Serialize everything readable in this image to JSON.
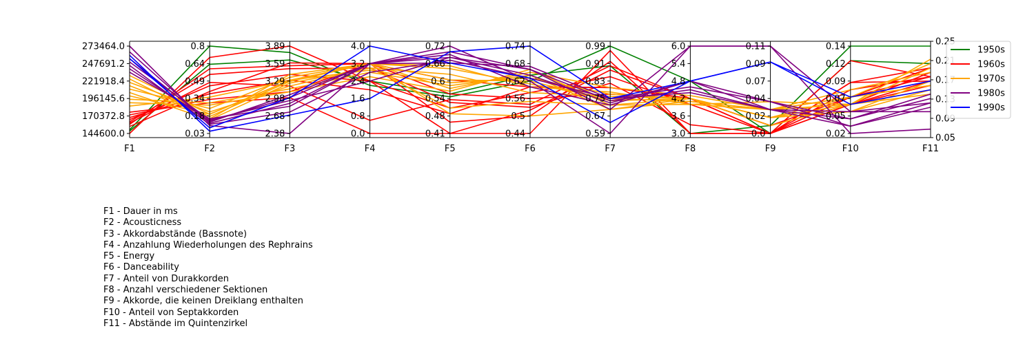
{
  "chart_data": {
    "type": "parallel-coordinates",
    "axes": [
      {
        "name": "F1",
        "range": [
          144600.0,
          273464.0
        ],
        "ticks": [
          "144600.0",
          "170372.8",
          "196145.6",
          "221918.4",
          "247691.2",
          "273464.0"
        ]
      },
      {
        "name": "F2",
        "range": [
          0.03,
          0.8
        ],
        "ticks": [
          "0.03",
          "0.18",
          "0.34",
          "0.49",
          "0.64",
          "0.8"
        ]
      },
      {
        "name": "F3",
        "range": [
          2.38,
          3.89
        ],
        "ticks": [
          "2.38",
          "2.68",
          "2.98",
          "3.29",
          "3.59",
          "3.89"
        ]
      },
      {
        "name": "F4",
        "range": [
          0.0,
          4.0
        ],
        "ticks": [
          "0.0",
          "0.8",
          "1.6",
          "2.4",
          "3.2",
          "4.0"
        ]
      },
      {
        "name": "F5",
        "range": [
          0.41,
          0.72
        ],
        "ticks": [
          "0.41",
          "0.48",
          "0.54",
          "0.6",
          "0.66",
          "0.72"
        ]
      },
      {
        "name": "F6",
        "range": [
          0.44,
          0.74
        ],
        "ticks": [
          "0.44",
          "0.5",
          "0.56",
          "0.62",
          "0.68",
          "0.74"
        ]
      },
      {
        "name": "F7",
        "range": [
          0.59,
          0.99
        ],
        "ticks": [
          "0.59",
          "0.67",
          "0.75",
          "0.83",
          "0.91",
          "0.99"
        ]
      },
      {
        "name": "F8",
        "range": [
          3.0,
          6.0
        ],
        "ticks": [
          "3.0",
          "3.6",
          "4.2",
          "4.8",
          "5.4",
          "6.0"
        ]
      },
      {
        "name": "F9",
        "range": [
          0.0,
          0.11
        ],
        "ticks": [
          "0.0",
          "0.02",
          "0.04",
          "0.07",
          "0.09",
          "0.11"
        ]
      },
      {
        "name": "F10",
        "range": [
          0.02,
          0.14
        ],
        "ticks": [
          "0.02",
          "0.05",
          "0.07",
          "0.09",
          "0.12",
          "0.14"
        ]
      },
      {
        "name": "F11",
        "range": [
          0.05,
          0.25
        ],
        "ticks": [
          "0.05",
          "0.09",
          "0.13",
          "0.17",
          "0.21",
          "0.25"
        ]
      }
    ],
    "legend_position": "right",
    "series": [
      {
        "name": "1950s",
        "color": "#008000",
        "lines": [
          [
            150000,
            0.8,
            3.78,
            2.2,
            0.54,
            0.62,
            0.99,
            4.8,
            0.0,
            0.12,
            0.21
          ],
          [
            148000,
            0.64,
            3.65,
            2.4,
            0.55,
            0.64,
            0.9,
            3.0,
            0.01,
            0.14,
            0.25
          ]
        ]
      },
      {
        "name": "1960s",
        "color": "#ff0000",
        "lines": [
          [
            144600,
            0.7,
            3.89,
            2.4,
            0.41,
            0.44,
            0.97,
            3.0,
            0.0,
            0.06,
            0.17
          ],
          [
            158000,
            0.6,
            3.55,
            3.2,
            0.45,
            0.5,
            0.92,
            3.0,
            0.0,
            0.12,
            0.18
          ],
          [
            162000,
            0.55,
            3.5,
            3.0,
            0.52,
            0.53,
            0.82,
            3.3,
            0.0,
            0.09,
            0.2
          ],
          [
            165000,
            0.45,
            3.4,
            2.4,
            0.5,
            0.58,
            0.85,
            4.0,
            0.0,
            0.07,
            0.18
          ],
          [
            168000,
            0.38,
            3.3,
            2.0,
            0.48,
            0.6,
            0.8,
            4.2,
            0.0,
            0.06,
            0.19
          ],
          [
            172000,
            0.33,
            3.1,
            3.2,
            0.55,
            0.56,
            0.77,
            4.2,
            0.01,
            0.06,
            0.16
          ],
          [
            176000,
            0.3,
            3.0,
            0.0,
            0.41,
            0.52,
            0.88,
            4.2,
            0.0,
            0.08,
            0.18
          ],
          [
            160000,
            0.48,
            3.2,
            0.6,
            0.53,
            0.54,
            0.9,
            4.2,
            0.01,
            0.07,
            0.2
          ],
          [
            155000,
            0.4,
            3.6,
            3.2,
            0.6,
            0.6,
            0.8,
            4.2,
            0.0,
            0.09,
            0.17
          ]
        ]
      },
      {
        "name": "1970s",
        "color": "#ffa500",
        "lines": [
          [
            200000,
            0.2,
            3.3,
            3.2,
            0.48,
            0.5,
            0.7,
            4.2,
            0.02,
            0.06,
            0.15
          ],
          [
            205000,
            0.15,
            3.25,
            3.0,
            0.5,
            0.55,
            0.72,
            4.0,
            0.03,
            0.07,
            0.16
          ],
          [
            210000,
            0.25,
            3.35,
            3.2,
            0.6,
            0.62,
            0.74,
            4.2,
            0.02,
            0.05,
            0.17
          ],
          [
            195000,
            0.3,
            3.15,
            2.8,
            0.58,
            0.64,
            0.7,
            4.1,
            0.03,
            0.08,
            0.19
          ],
          [
            215000,
            0.18,
            3.28,
            3.2,
            0.65,
            0.6,
            0.78,
            4.0,
            0.04,
            0.06,
            0.2
          ],
          [
            220000,
            0.22,
            3.2,
            3.0,
            0.62,
            0.58,
            0.76,
            4.2,
            0.02,
            0.07,
            0.21
          ],
          [
            225000,
            0.16,
            3.4,
            3.2,
            0.57,
            0.65,
            0.8,
            4.3,
            0.03,
            0.06,
            0.14
          ],
          [
            190000,
            0.28,
            3.1,
            2.6,
            0.56,
            0.66,
            0.72,
            4.2,
            0.02,
            0.05,
            0.15
          ],
          [
            185000,
            0.35,
            3.3,
            3.2,
            0.64,
            0.61,
            0.75,
            4.1,
            0.03,
            0.07,
            0.16
          ],
          [
            230000,
            0.2,
            3.3,
            2.9,
            0.59,
            0.63,
            0.77,
            4.2,
            0.01,
            0.06,
            0.22
          ]
        ]
      },
      {
        "name": "1980s",
        "color": "#800080",
        "lines": [
          [
            273464,
            0.1,
            2.38,
            3.2,
            0.72,
            0.62,
            0.59,
            6.0,
            0.11,
            0.02,
            0.06
          ],
          [
            265000,
            0.12,
            2.9,
            3.2,
            0.7,
            0.66,
            0.7,
            6.0,
            0.11,
            0.05,
            0.1
          ],
          [
            250000,
            0.15,
            2.95,
            2.4,
            0.68,
            0.64,
            0.73,
            4.8,
            0.04,
            0.03,
            0.12
          ],
          [
            240000,
            0.14,
            3.0,
            3.2,
            0.66,
            0.67,
            0.75,
            4.4,
            0.03,
            0.04,
            0.13
          ],
          [
            235000,
            0.16,
            2.85,
            3.2,
            0.69,
            0.6,
            0.72,
            4.8,
            0.03,
            0.03,
            0.11
          ],
          [
            245000,
            0.11,
            2.75,
            2.8,
            0.67,
            0.63,
            0.75,
            4.6,
            0.04,
            0.04,
            0.14
          ],
          [
            255000,
            0.13,
            3.05,
            3.2,
            0.68,
            0.66,
            0.74,
            4.5,
            0.03,
            0.05,
            0.12
          ]
        ]
      },
      {
        "name": "1990s",
        "color": "#0000ff",
        "lines": [
          [
            260000,
            0.05,
            2.7,
            1.6,
            0.7,
            0.74,
            0.75,
            4.8,
            0.09,
            0.06,
            0.15
          ],
          [
            255000,
            0.08,
            3.0,
            4.0,
            0.66,
            0.63,
            0.64,
            4.8,
            0.09,
            0.07,
            0.17
          ]
        ]
      }
    ]
  },
  "descriptions": [
    "F1 - Dauer in ms",
    "F2 - Acousticness",
    "F3 - Akkordabstände (Bassnote)",
    "F4 - Anzahlung Wiederholungen des Rephrains",
    "F5 - Energy",
    "F6 - Danceability",
    "F7 - Anteil von Durakkorden",
    "F8 - Anzahl verschiedener Sektionen",
    "F9 - Akkorde, die keinen Dreiklang enthalten",
    "F10 - Anteil von Septakkorden",
    "F11 - Abstände im Quintenzirkel"
  ]
}
